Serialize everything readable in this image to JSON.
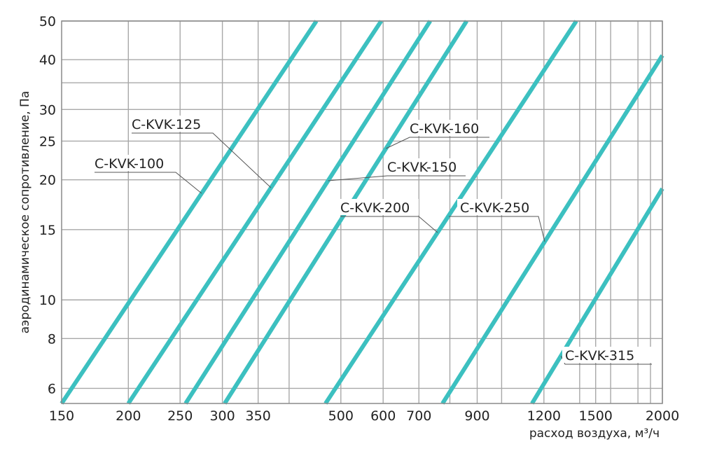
{
  "chart_data": {
    "type": "line",
    "x_scale": "log",
    "y_scale": "log",
    "xlim": [
      150,
      2000
    ],
    "ylim": [
      5.5,
      50
    ],
    "xlabel": "расход воздуха, м³/ч",
    "ylabel": "аэродинамическое сопротивление, Па",
    "x_ticks": [
      {
        "value": 150,
        "label": "150"
      },
      {
        "value": 200,
        "label": "200"
      },
      {
        "value": 250,
        "label": "250"
      },
      {
        "value": 300,
        "label": "300"
      },
      {
        "value": 350,
        "label": "350"
      },
      {
        "value": 500,
        "label": "500"
      },
      {
        "value": 600,
        "label": "600"
      },
      {
        "value": 700,
        "label": "700"
      },
      {
        "value": 900,
        "label": "900"
      },
      {
        "value": 1200,
        "label": "1200"
      },
      {
        "value": 1500,
        "label": "1500"
      },
      {
        "value": 2000,
        "label": "2000"
      }
    ],
    "x_gridlines": [
      200,
      250,
      300,
      350,
      400,
      500,
      600,
      700,
      800,
      900,
      1000,
      1200,
      1400,
      1500,
      1600,
      1800,
      1900,
      2000
    ],
    "y_ticks": [
      {
        "value": 6,
        "label": "6"
      },
      {
        "value": 8,
        "label": "8"
      },
      {
        "value": 10,
        "label": "10"
      },
      {
        "value": 15,
        "label": "15"
      },
      {
        "value": 20,
        "label": "20"
      },
      {
        "value": 25,
        "label": "25"
      },
      {
        "value": 30,
        "label": "30"
      },
      {
        "value": 40,
        "label": "40"
      },
      {
        "value": 50,
        "label": "50"
      }
    ],
    "y_gridlines": [
      6,
      8,
      10,
      15,
      20,
      25,
      30,
      35,
      40,
      50
    ],
    "grid": true,
    "series_color": "#3cc0c0",
    "series": [
      {
        "name": "C-KVK-100",
        "points": [
          [
            150,
            5.5
          ],
          [
            450,
            50
          ]
        ]
      },
      {
        "name": "C-KVK-125",
        "points": [
          [
            200,
            5.5
          ],
          [
            595,
            50
          ]
        ]
      },
      {
        "name": "C-KVK-150",
        "points": [
          [
            256,
            5.5
          ],
          [
            735,
            50
          ]
        ]
      },
      {
        "name": "C-KVK-160",
        "points": [
          [
            303,
            5.5
          ],
          [
            860,
            50
          ]
        ]
      },
      {
        "name": "C-KVK-200",
        "points": [
          [
            468,
            5.5
          ],
          [
            1380,
            50
          ]
        ]
      },
      {
        "name": "C-KVK-250",
        "points": [
          [
            775,
            5.5
          ],
          [
            2000,
            41
          ]
        ]
      },
      {
        "name": "C-KVK-315",
        "points": [
          [
            1140,
            5.5
          ],
          [
            2000,
            19
          ]
        ]
      }
    ]
  }
}
